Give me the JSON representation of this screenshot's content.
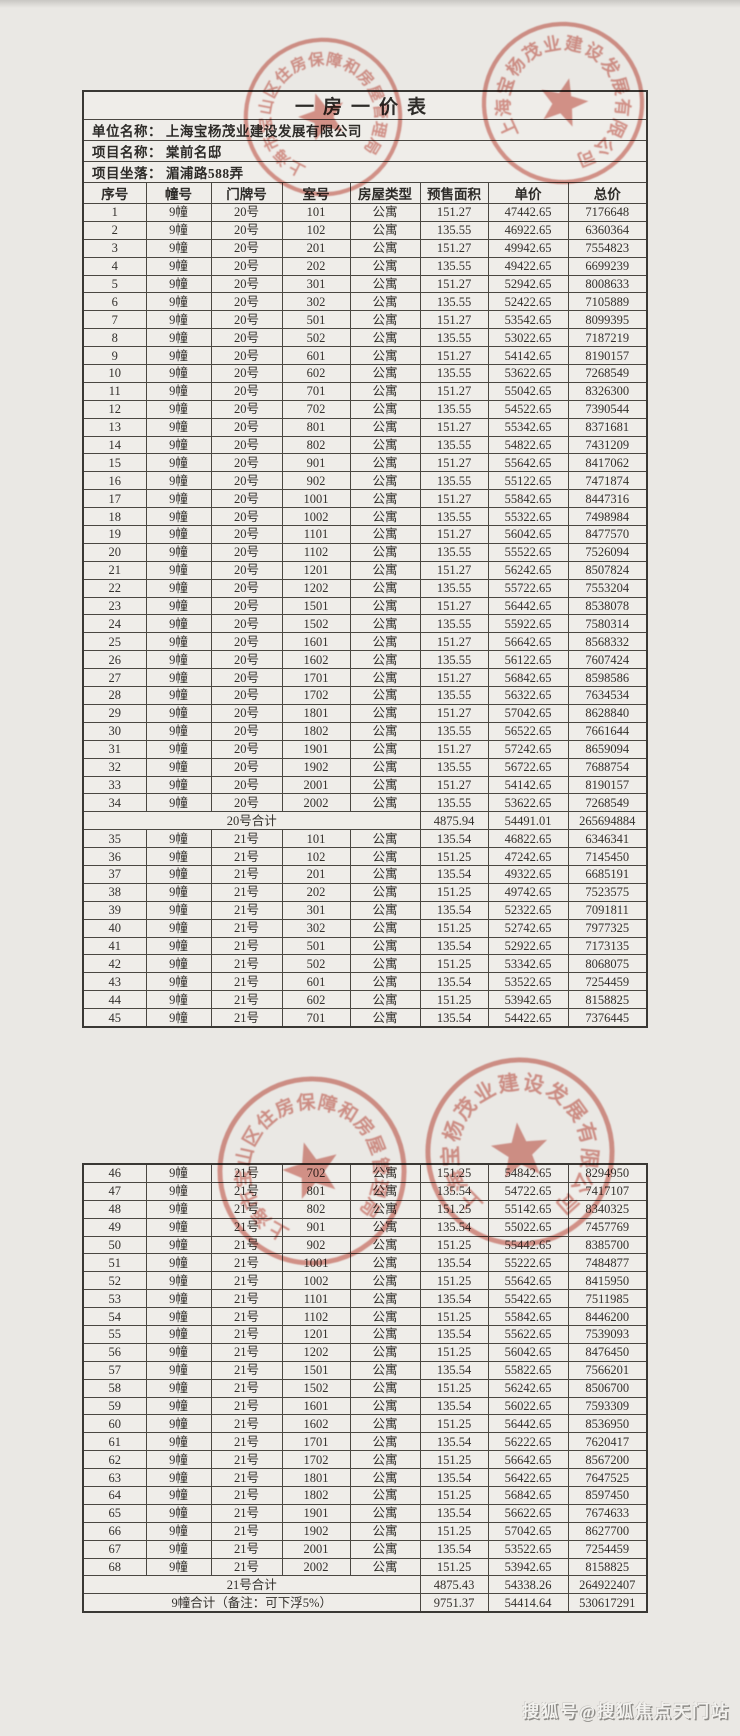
{
  "title": "一房一价表",
  "info": [
    "单位名称：  上海宝杨茂业建设发展有限公司",
    "项目名称：  棠前名邸",
    "项目坐落：  湄浦路588弄"
  ],
  "columns": [
    "序号",
    "幢号",
    "门牌号",
    "室号",
    "房屋类型",
    "预售面积",
    "单价",
    "总价"
  ],
  "tables": [
    {
      "rows": [
        {
          "cells": [
            "1",
            "9幢",
            "20号",
            "101",
            "公寓",
            "151.27",
            "47442.65",
            "7176648"
          ]
        },
        {
          "cells": [
            "2",
            "9幢",
            "20号",
            "102",
            "公寓",
            "135.55",
            "46922.65",
            "6360364"
          ]
        },
        {
          "cells": [
            "3",
            "9幢",
            "20号",
            "201",
            "公寓",
            "151.27",
            "49942.65",
            "7554823"
          ]
        },
        {
          "cells": [
            "4",
            "9幢",
            "20号",
            "202",
            "公寓",
            "135.55",
            "49422.65",
            "6699239"
          ]
        },
        {
          "cells": [
            "5",
            "9幢",
            "20号",
            "301",
            "公寓",
            "151.27",
            "52942.65",
            "8008633"
          ]
        },
        {
          "cells": [
            "6",
            "9幢",
            "20号",
            "302",
            "公寓",
            "135.55",
            "52422.65",
            "7105889"
          ]
        },
        {
          "cells": [
            "7",
            "9幢",
            "20号",
            "501",
            "公寓",
            "151.27",
            "53542.65",
            "8099395"
          ]
        },
        {
          "cells": [
            "8",
            "9幢",
            "20号",
            "502",
            "公寓",
            "135.55",
            "53022.65",
            "7187219"
          ]
        },
        {
          "cells": [
            "9",
            "9幢",
            "20号",
            "601",
            "公寓",
            "151.27",
            "54142.65",
            "8190157"
          ]
        },
        {
          "cells": [
            "10",
            "9幢",
            "20号",
            "602",
            "公寓",
            "135.55",
            "53622.65",
            "7268549"
          ]
        },
        {
          "cells": [
            "11",
            "9幢",
            "20号",
            "701",
            "公寓",
            "151.27",
            "55042.65",
            "8326300"
          ]
        },
        {
          "cells": [
            "12",
            "9幢",
            "20号",
            "702",
            "公寓",
            "135.55",
            "54522.65",
            "7390544"
          ]
        },
        {
          "cells": [
            "13",
            "9幢",
            "20号",
            "801",
            "公寓",
            "151.27",
            "55342.65",
            "8371681"
          ]
        },
        {
          "cells": [
            "14",
            "9幢",
            "20号",
            "802",
            "公寓",
            "135.55",
            "54822.65",
            "7431209"
          ]
        },
        {
          "cells": [
            "15",
            "9幢",
            "20号",
            "901",
            "公寓",
            "151.27",
            "55642.65",
            "8417062"
          ]
        },
        {
          "cells": [
            "16",
            "9幢",
            "20号",
            "902",
            "公寓",
            "135.55",
            "55122.65",
            "7471874"
          ]
        },
        {
          "cells": [
            "17",
            "9幢",
            "20号",
            "1001",
            "公寓",
            "151.27",
            "55842.65",
            "8447316"
          ]
        },
        {
          "cells": [
            "18",
            "9幢",
            "20号",
            "1002",
            "公寓",
            "135.55",
            "55322.65",
            "7498984"
          ]
        },
        {
          "cells": [
            "19",
            "9幢",
            "20号",
            "1101",
            "公寓",
            "151.27",
            "56042.65",
            "8477570"
          ]
        },
        {
          "cells": [
            "20",
            "9幢",
            "20号",
            "1102",
            "公寓",
            "135.55",
            "55522.65",
            "7526094"
          ]
        },
        {
          "cells": [
            "21",
            "9幢",
            "20号",
            "1201",
            "公寓",
            "151.27",
            "56242.65",
            "8507824"
          ]
        },
        {
          "cells": [
            "22",
            "9幢",
            "20号",
            "1202",
            "公寓",
            "135.55",
            "55722.65",
            "7553204"
          ]
        },
        {
          "cells": [
            "23",
            "9幢",
            "20号",
            "1501",
            "公寓",
            "151.27",
            "56442.65",
            "8538078"
          ]
        },
        {
          "cells": [
            "24",
            "9幢",
            "20号",
            "1502",
            "公寓",
            "135.55",
            "55922.65",
            "7580314"
          ]
        },
        {
          "cells": [
            "25",
            "9幢",
            "20号",
            "1601",
            "公寓",
            "151.27",
            "56642.65",
            "8568332"
          ]
        },
        {
          "cells": [
            "26",
            "9幢",
            "20号",
            "1602",
            "公寓",
            "135.55",
            "56122.65",
            "7607424"
          ]
        },
        {
          "cells": [
            "27",
            "9幢",
            "20号",
            "1701",
            "公寓",
            "151.27",
            "56842.65",
            "8598586"
          ]
        },
        {
          "cells": [
            "28",
            "9幢",
            "20号",
            "1702",
            "公寓",
            "135.55",
            "56322.65",
            "7634534"
          ]
        },
        {
          "cells": [
            "29",
            "9幢",
            "20号",
            "1801",
            "公寓",
            "151.27",
            "57042.65",
            "8628840"
          ]
        },
        {
          "cells": [
            "30",
            "9幢",
            "20号",
            "1802",
            "公寓",
            "135.55",
            "56522.65",
            "7661644"
          ]
        },
        {
          "cells": [
            "31",
            "9幢",
            "20号",
            "1901",
            "公寓",
            "151.27",
            "57242.65",
            "8659094"
          ]
        },
        {
          "cells": [
            "32",
            "9幢",
            "20号",
            "1902",
            "公寓",
            "135.55",
            "56722.65",
            "7688754"
          ]
        },
        {
          "cells": [
            "33",
            "9幢",
            "20号",
            "2001",
            "公寓",
            "151.27",
            "54142.65",
            "8190157"
          ]
        },
        {
          "cells": [
            "34",
            "9幢",
            "20号",
            "2002",
            "公寓",
            "135.55",
            "53622.65",
            "7268549"
          ]
        },
        {
          "merge": 5,
          "cells": [
            "20号合计",
            "4875.94",
            "54491.01",
            "265694884"
          ]
        },
        {
          "cells": [
            "35",
            "9幢",
            "21号",
            "101",
            "公寓",
            "135.54",
            "46822.65",
            "6346341"
          ]
        },
        {
          "cells": [
            "36",
            "9幢",
            "21号",
            "102",
            "公寓",
            "151.25",
            "47242.65",
            "7145450"
          ]
        },
        {
          "cells": [
            "37",
            "9幢",
            "21号",
            "201",
            "公寓",
            "135.54",
            "49322.65",
            "6685191"
          ]
        },
        {
          "cells": [
            "38",
            "9幢",
            "21号",
            "202",
            "公寓",
            "151.25",
            "49742.65",
            "7523575"
          ]
        },
        {
          "cells": [
            "39",
            "9幢",
            "21号",
            "301",
            "公寓",
            "135.54",
            "52322.65",
            "7091811"
          ]
        },
        {
          "cells": [
            "40",
            "9幢",
            "21号",
            "302",
            "公寓",
            "151.25",
            "52742.65",
            "7977325"
          ]
        },
        {
          "cells": [
            "41",
            "9幢",
            "21号",
            "501",
            "公寓",
            "135.54",
            "52922.65",
            "7173135"
          ]
        },
        {
          "cells": [
            "42",
            "9幢",
            "21号",
            "502",
            "公寓",
            "151.25",
            "53342.65",
            "8068075"
          ]
        },
        {
          "cells": [
            "43",
            "9幢",
            "21号",
            "601",
            "公寓",
            "135.54",
            "53522.65",
            "7254459"
          ]
        },
        {
          "cells": [
            "44",
            "9幢",
            "21号",
            "602",
            "公寓",
            "151.25",
            "53942.65",
            "8158825"
          ]
        },
        {
          "cells": [
            "45",
            "9幢",
            "21号",
            "701",
            "公寓",
            "135.54",
            "54422.65",
            "7376445"
          ]
        }
      ]
    },
    {
      "rows": [
        {
          "cells": [
            "46",
            "9幢",
            "21号",
            "702",
            "公寓",
            "151.25",
            "54842.65",
            "8294950"
          ]
        },
        {
          "cells": [
            "47",
            "9幢",
            "21号",
            "801",
            "公寓",
            "135.54",
            "54722.65",
            "7417107"
          ]
        },
        {
          "cells": [
            "48",
            "9幢",
            "21号",
            "802",
            "公寓",
            "151.25",
            "55142.65",
            "8340325"
          ]
        },
        {
          "cells": [
            "49",
            "9幢",
            "21号",
            "901",
            "公寓",
            "135.54",
            "55022.65",
            "7457769"
          ]
        },
        {
          "cells": [
            "50",
            "9幢",
            "21号",
            "902",
            "公寓",
            "151.25",
            "55442.65",
            "8385700"
          ]
        },
        {
          "cells": [
            "51",
            "9幢",
            "21号",
            "1001",
            "公寓",
            "135.54",
            "55222.65",
            "7484877"
          ]
        },
        {
          "cells": [
            "52",
            "9幢",
            "21号",
            "1002",
            "公寓",
            "151.25",
            "55642.65",
            "8415950"
          ]
        },
        {
          "cells": [
            "53",
            "9幢",
            "21号",
            "1101",
            "公寓",
            "135.54",
            "55422.65",
            "7511985"
          ]
        },
        {
          "cells": [
            "54",
            "9幢",
            "21号",
            "1102",
            "公寓",
            "151.25",
            "55842.65",
            "8446200"
          ]
        },
        {
          "cells": [
            "55",
            "9幢",
            "21号",
            "1201",
            "公寓",
            "135.54",
            "55622.65",
            "7539093"
          ]
        },
        {
          "cells": [
            "56",
            "9幢",
            "21号",
            "1202",
            "公寓",
            "151.25",
            "56042.65",
            "8476450"
          ]
        },
        {
          "cells": [
            "57",
            "9幢",
            "21号",
            "1501",
            "公寓",
            "135.54",
            "55822.65",
            "7566201"
          ]
        },
        {
          "cells": [
            "58",
            "9幢",
            "21号",
            "1502",
            "公寓",
            "151.25",
            "56242.65",
            "8506700"
          ]
        },
        {
          "cells": [
            "59",
            "9幢",
            "21号",
            "1601",
            "公寓",
            "135.54",
            "56022.65",
            "7593309"
          ]
        },
        {
          "cells": [
            "60",
            "9幢",
            "21号",
            "1602",
            "公寓",
            "151.25",
            "56442.65",
            "8536950"
          ]
        },
        {
          "cells": [
            "61",
            "9幢",
            "21号",
            "1701",
            "公寓",
            "135.54",
            "56222.65",
            "7620417"
          ]
        },
        {
          "cells": [
            "62",
            "9幢",
            "21号",
            "1702",
            "公寓",
            "151.25",
            "56642.65",
            "8567200"
          ]
        },
        {
          "cells": [
            "63",
            "9幢",
            "21号",
            "1801",
            "公寓",
            "135.54",
            "56422.65",
            "7647525"
          ]
        },
        {
          "cells": [
            "64",
            "9幢",
            "21号",
            "1802",
            "公寓",
            "151.25",
            "56842.65",
            "8597450"
          ]
        },
        {
          "cells": [
            "65",
            "9幢",
            "21号",
            "1901",
            "公寓",
            "135.54",
            "56622.65",
            "7674633"
          ]
        },
        {
          "cells": [
            "66",
            "9幢",
            "21号",
            "1902",
            "公寓",
            "151.25",
            "57042.65",
            "8627700"
          ]
        },
        {
          "cells": [
            "67",
            "9幢",
            "21号",
            "2001",
            "公寓",
            "135.54",
            "53522.65",
            "7254459"
          ]
        },
        {
          "cells": [
            "68",
            "9幢",
            "21号",
            "2002",
            "公寓",
            "151.25",
            "53942.65",
            "8158825"
          ]
        },
        {
          "merge": 5,
          "cells": [
            "21号合计",
            "4875.43",
            "54338.26",
            "264922407"
          ]
        },
        {
          "merge": 5,
          "cells": [
            "9幢合计（备注：可下浮5%）",
            "9751.37",
            "54414.64",
            "530617291"
          ]
        }
      ]
    }
  ],
  "stamps": {
    "authority_arc": "上海市宝山区住房保障和房屋管理局",
    "company_arc": "上海宝杨茂业建设发展有限公司"
  },
  "watermark": "搜狐号@搜狐焦点天门站",
  "colors": {
    "stamp_red": "#c4483a",
    "paper": "#efede9",
    "background": "#eae8e4"
  }
}
